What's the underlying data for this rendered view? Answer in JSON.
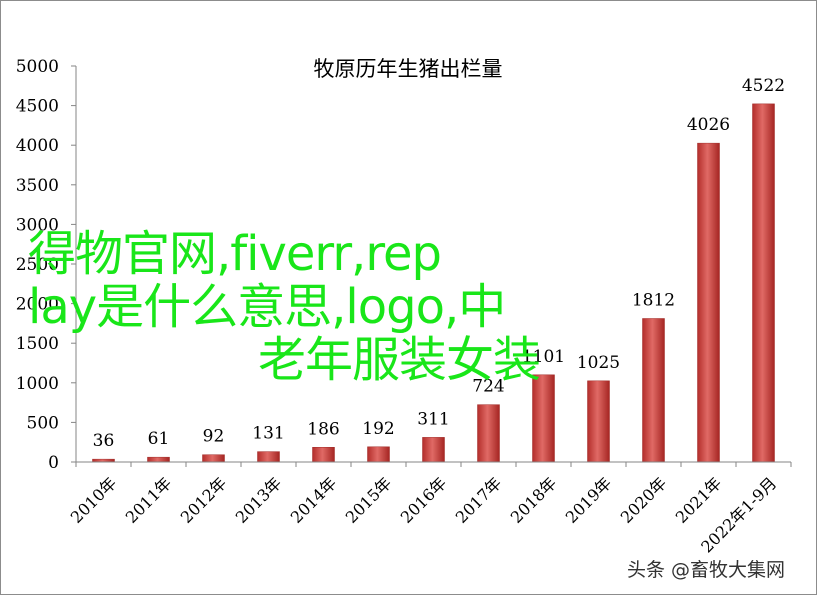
{
  "chart_data": {
    "type": "bar",
    "title": "牧原历年生猪出栏量",
    "xlabel": "",
    "ylabel": "",
    "categories": [
      "2010年",
      "2011年",
      "2012年",
      "2013年",
      "2014年",
      "2015年",
      "2016年",
      "2017年",
      "2018年",
      "2019年",
      "2020年",
      "2021年",
      "2022年1-9月"
    ],
    "values": [
      36,
      61,
      92,
      131,
      186,
      192,
      311,
      724,
      1101,
      1025,
      1812,
      4026,
      4522
    ],
    "ylim": [
      0,
      5000
    ],
    "yticks": [
      0,
      500,
      1000,
      1500,
      2000,
      2500,
      3000,
      3500,
      4000,
      4500,
      5000
    ],
    "grid": false,
    "legend": "none",
    "bar_color": "#c8403e",
    "bar_highlight": "#e06a65",
    "axis_color": "#868686"
  },
  "overlay": {
    "lines": [
      "得物官网,fiverr,rep",
      "lay是什么意思,logo,中",
      "老年服装女装"
    ],
    "color": "#19e619"
  },
  "watermark": "头条 @畜牧大集网"
}
